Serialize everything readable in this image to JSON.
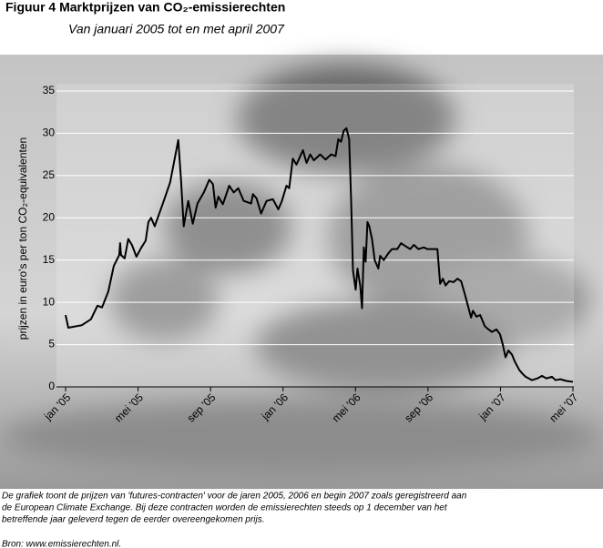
{
  "chart_data": {
    "type": "line",
    "title": "Figuur 4 Marktprijzen van CO₂-emissierechten",
    "subtitle": "Van januari 2005 tot en met april 2007",
    "y_label": "prijzen in euro's per ton CO₂-equivalenten",
    "note": [
      "De grafiek toont de prijzen van 'futures-contracten' voor de jaren 2005, 2006 en begin 2007 zoals geregistreerd aan",
      "de European Climate Exchange. Bij deze contracten worden de emissierechten steeds op 1 december van het",
      "betreffende jaar geleverd tegen de eerder overeengekomen prijs."
    ],
    "source": "Bron: www.emissierechten.nl.",
    "x": [
      0,
      0.15,
      0.9,
      1.4,
      1.76,
      2.01,
      2.36,
      2.66,
      2.96,
      3.01,
      3.06,
      3.26,
      3.46,
      3.66,
      3.91,
      4.16,
      4.42,
      4.57,
      4.72,
      4.92,
      5.42,
      5.77,
      6.22,
      6.37,
      6.52,
      6.77,
      7.02,
      7.28,
      7.63,
      7.93,
      8.13,
      8.28,
      8.43,
      8.68,
      9.03,
      9.28,
      9.53,
      9.83,
      10.24,
      10.34,
      10.54,
      10.79,
      11.09,
      11.44,
      11.74,
      11.94,
      12.19,
      12.34,
      12.54,
      12.74,
      13.1,
      13.3,
      13.5,
      13.7,
      14.05,
      14.35,
      14.65,
      14.9,
      15.05,
      15.2,
      15.35,
      15.5,
      15.65,
      15.76,
      15.86,
      16.01,
      16.11,
      16.26,
      16.36,
      16.46,
      16.56,
      16.66,
      16.76,
      16.91,
      17.06,
      17.26,
      17.36,
      17.56,
      17.81,
      18.01,
      18.31,
      18.51,
      18.72,
      19.02,
      19.22,
      19.47,
      19.77,
      19.97,
      20.52,
      20.67,
      20.82,
      20.97,
      21.17,
      21.42,
      21.63,
      21.83,
      22.03,
      22.28,
      22.38,
      22.48,
      22.68,
      22.88,
      23.13,
      23.28,
      23.53,
      23.78,
      23.98,
      24.13,
      24.28,
      24.44,
      24.64,
      24.79,
      25.04,
      25.24,
      25.39,
      25.74,
      26.04,
      26.29,
      26.54,
      26.84,
      27.04,
      27.3,
      27.65,
      28.0
    ],
    "series": [
      {
        "color": "#000000",
        "values": [
          8.5,
          7.0,
          7.3,
          8.0,
          9.6,
          9.4,
          11.3,
          14.3,
          15.6,
          17.0,
          15.6,
          15.2,
          17.5,
          16.8,
          15.4,
          16.4,
          17.3,
          19.5,
          20.0,
          19.0,
          22.0,
          24.2,
          29.2,
          24.5,
          19.0,
          22.0,
          19.3,
          21.7,
          23.0,
          24.5,
          24.0,
          21.2,
          22.5,
          21.6,
          23.8,
          23.0,
          23.5,
          22.0,
          21.7,
          22.8,
          22.3,
          20.5,
          22.0,
          22.2,
          21.0,
          22.0,
          23.8,
          23.5,
          27.0,
          26.3,
          28.0,
          26.5,
          27.5,
          26.8,
          27.5,
          26.9,
          27.5,
          27.3,
          29.3,
          29.0,
          30.3,
          30.6,
          29.3,
          22.0,
          13.8,
          11.5,
          14.0,
          12.0,
          9.3,
          16.5,
          14.8,
          19.5,
          19.0,
          17.5,
          15.0,
          14.0,
          15.5,
          15.0,
          15.8,
          16.3,
          16.3,
          17.0,
          16.7,
          16.3,
          16.8,
          16.3,
          16.5,
          16.3,
          16.3,
          12.2,
          12.8,
          12.0,
          12.5,
          12.4,
          12.8,
          12.5,
          11.0,
          9.0,
          8.2,
          9.0,
          8.3,
          8.5,
          7.2,
          6.9,
          6.5,
          6.8,
          6.2,
          5.0,
          3.5,
          4.3,
          3.8,
          3.0,
          2.0,
          1.5,
          1.2,
          0.8,
          1.0,
          1.3,
          1.0,
          1.2,
          0.8,
          0.9,
          0.7,
          0.6
        ]
      }
    ],
    "xlim": [
      0,
      28
    ],
    "xticks": [
      {
        "value": 0,
        "label": "jan '05"
      },
      {
        "value": 4,
        "label": "mei '05"
      },
      {
        "value": 8,
        "label": "sep '05"
      },
      {
        "value": 12,
        "label": "jan '06"
      },
      {
        "value": 16,
        "label": "mei '06"
      },
      {
        "value": 20,
        "label": "sep '06"
      },
      {
        "value": 24,
        "label": "jan '07"
      },
      {
        "value": 28,
        "label": "mei '07"
      }
    ],
    "ylim": [
      0,
      35
    ],
    "yticks": [
      0,
      5,
      10,
      15,
      20,
      25,
      30,
      35
    ],
    "grid": true
  }
}
